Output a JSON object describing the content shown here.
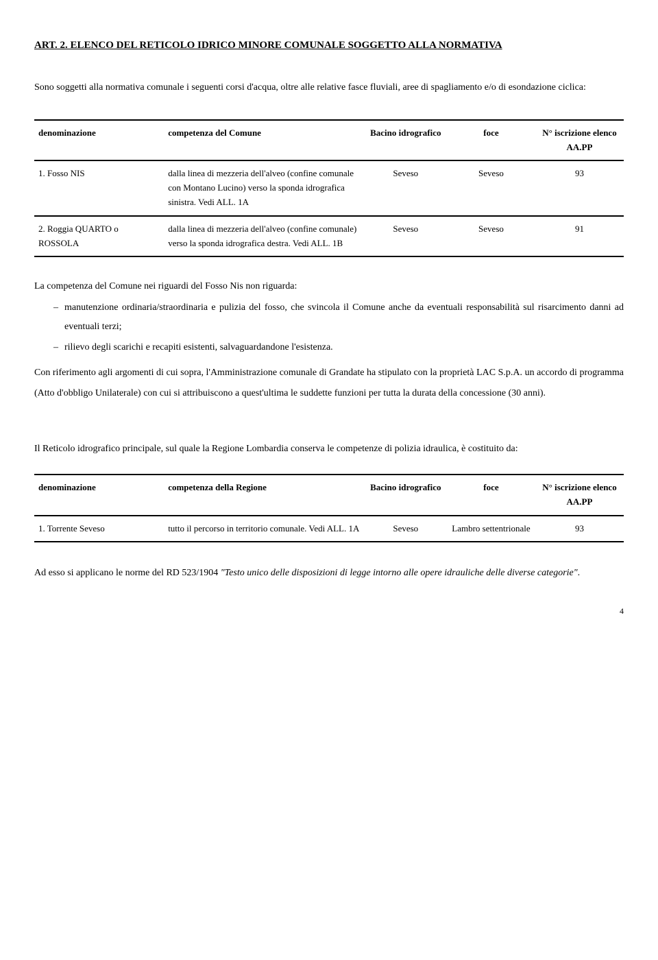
{
  "heading": "ART. 2. ELENCO DEL RETICOLO IDRICO MINORE COMUNALE SOGGETTO ALLA NORMATIVA",
  "intro": "Sono soggetti alla normativa comunale i seguenti corsi d'acqua, oltre alle relative fasce fluviali, aree di spagliamento e/o di esondazione ciclica:",
  "table1": {
    "headers": {
      "denom": "denominazione",
      "comp": "competenza del Comune",
      "bacino": "Bacino idrografico",
      "foce": "foce",
      "iscr": "N° iscrizione elenco AA.PP"
    },
    "rows": [
      {
        "denom": "1. Fosso NIS",
        "comp": "dalla linea di mezzeria dell'alveo (confine comunale con Montano Lucino) verso la sponda idrografica sinistra. Vedi ALL. 1A",
        "bacino": "Seveso",
        "foce": "Seveso",
        "iscr": "93"
      },
      {
        "denom": "2. Roggia QUARTO o ROSSOLA",
        "comp": "dalla linea di mezzeria dell'alveo (confine comunale) verso la sponda idrografica destra. Vedi ALL. 1B",
        "bacino": "Seveso",
        "foce": "Seveso",
        "iscr": "91"
      }
    ]
  },
  "section1": {
    "subhead": "La competenza del Comune nei riguardi del Fosso Nis non riguarda:",
    "bullets": [
      "manutenzione ordinaria/straordinaria e pulizia del fosso, che svincola il Comune anche da eventuali responsabilità sul risarcimento danni ad eventuali terzi;",
      "rilievo degli scarichi e recapiti esistenti, salvaguardandone l'esistenza."
    ],
    "para": "Con riferimento agli argomenti di cui sopra, l'Amministrazione comunale di Grandate ha stipulato con la proprietà LAC S.p.A. un accordo di programma (Atto d'obbligo Unilaterale) con cui si attribuiscono a quest'ultima le suddette funzioni per tutta la durata della concessione (30 anni)."
  },
  "section2": {
    "intro": "Il Reticolo idrografico principale, sul quale la Regione Lombardia conserva le competenze di polizia idraulica, è costituito da:"
  },
  "table2": {
    "headers": {
      "denom": "denominazione",
      "comp": "competenza della Regione",
      "bacino": "Bacino idrografico",
      "foce": "foce",
      "iscr": "N° iscrizione elenco AA.PP"
    },
    "rows": [
      {
        "denom": "1. Torrente Seveso",
        "comp": "tutto il percorso in territorio comunale. Vedi ALL. 1A",
        "bacino": "Seveso",
        "foce": "Lambro settentrionale",
        "iscr": "93"
      }
    ]
  },
  "closing_prefix": "Ad esso si applicano le norme del RD 523/1904 ",
  "closing_italic": "\"Testo unico delle disposizioni di legge intorno alle opere idrauliche delle diverse categorie\"",
  "closing_suffix": ".",
  "page_number": "4"
}
